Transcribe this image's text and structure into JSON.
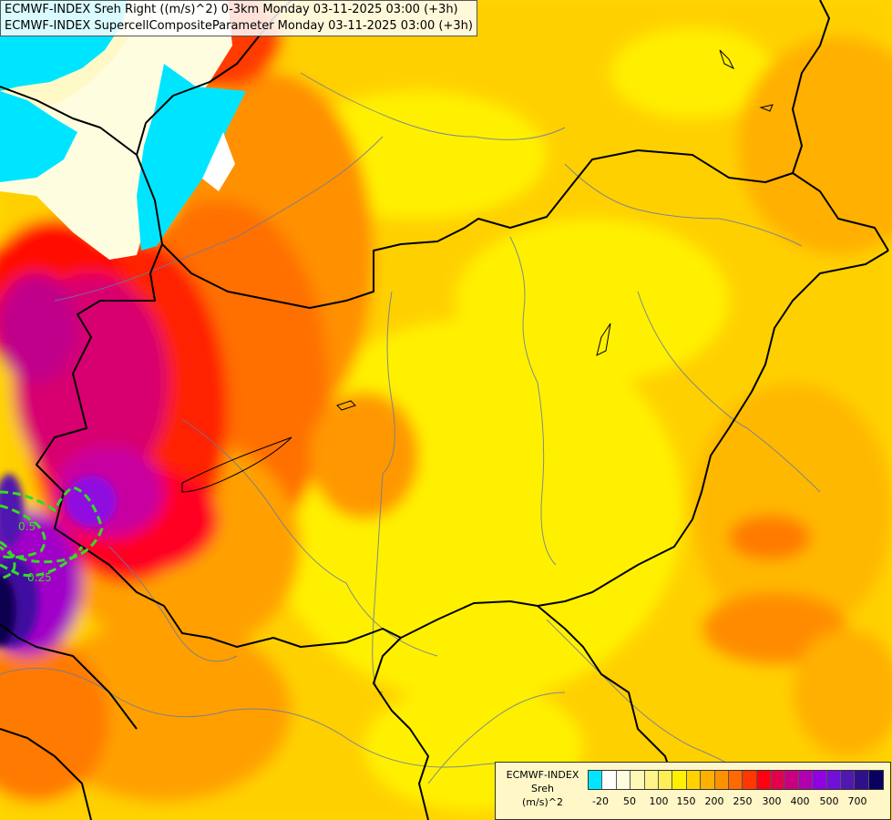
{
  "title": {
    "line1": "ECMWF-INDEX Sreh Right ((m/s)^2) 0-3km Monday 03-11-2025 03:00 (+3h)",
    "line2": "ECMWF-INDEX SupercellCompositeParameter Monday 03-11-2025 03:00 (+3h)"
  },
  "contour_labels": {
    "scp_05": "0.5",
    "scp_025": "0.25"
  },
  "legend": {
    "line1": "ECMWF-INDEX",
    "line2": "Sreh",
    "line3": "(m/s)^2",
    "colors": [
      "#00e5ff",
      "#ffffff",
      "#fffde0",
      "#fff9b8",
      "#fff38a",
      "#ffee55",
      "#fff000",
      "#ffd200",
      "#ffb000",
      "#ff9000",
      "#ff6a00",
      "#ff3800",
      "#ff0010",
      "#e5004a",
      "#c8007f",
      "#b000b0",
      "#9000e0",
      "#7010d8",
      "#5018b0",
      "#30108a",
      "#0a0060"
    ],
    "ticks": [
      "-20",
      "50",
      "100",
      "150",
      "200",
      "250",
      "300",
      "400",
      "500",
      "700"
    ]
  },
  "colors": {
    "border": "#000000",
    "rivers": "#6a7aa0",
    "scp_contour": "#33dd22"
  }
}
